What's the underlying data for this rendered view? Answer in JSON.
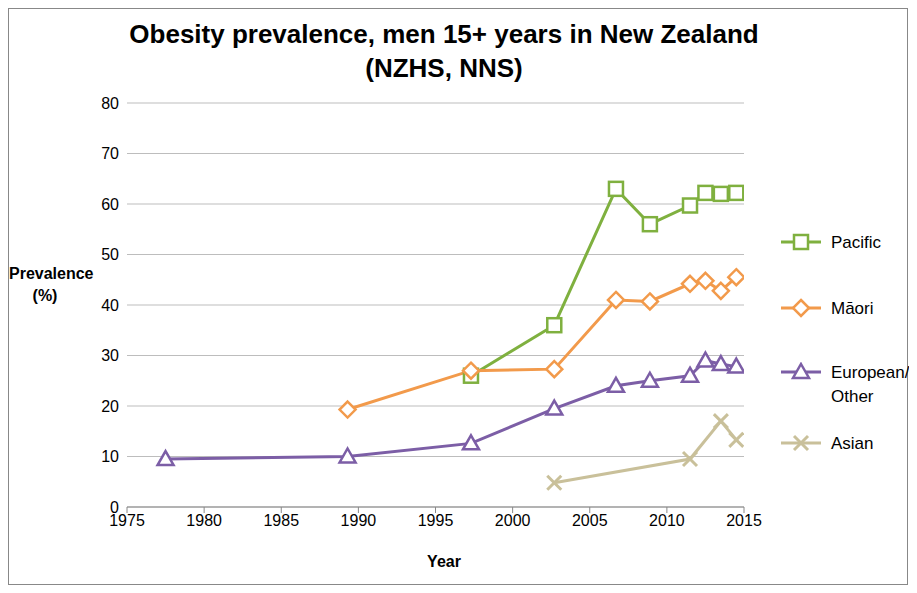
{
  "chart_data": {
    "type": "line",
    "title": "Obesity prevalence, men 15+ years in New Zealand\n(NZHS, NNS)",
    "x_label": "Year",
    "y_label": "Prevalence\n(%)",
    "xlim": [
      1975,
      2015
    ],
    "xticks": [
      1975,
      1980,
      1985,
      1990,
      1995,
      2000,
      2005,
      2010,
      2015
    ],
    "ylim": [
      0,
      80
    ],
    "yticks": [
      0,
      10,
      20,
      30,
      40,
      50,
      60,
      70,
      80
    ],
    "grid": true,
    "legend": "right",
    "series": [
      {
        "name": "Pacific",
        "color": "#7fb03f",
        "marker": "square",
        "x": [
          1997.3,
          2002.7,
          2006.7,
          2008.9,
          2011.5,
          2012.5,
          2013.5,
          2014.5
        ],
        "values": [
          26,
          36,
          63,
          56,
          59.7,
          62.2,
          62,
          62.2
        ]
      },
      {
        "name": "Māori",
        "color": "#f29a4b",
        "marker": "diamond",
        "x": [
          1989.3,
          1997.3,
          2002.7,
          2006.7,
          2008.9,
          2011.5,
          2012.5,
          2013.5,
          2014.5
        ],
        "values": [
          19.3,
          27,
          27.3,
          41,
          40.7,
          44.2,
          44.8,
          42.8,
          45.5
        ]
      },
      {
        "name": "European/\nOther",
        "color": "#7c5ea6",
        "marker": "triangle",
        "x": [
          1977.5,
          1989.3,
          1997.3,
          2002.7,
          2006.7,
          2008.9,
          2011.5,
          2012.5,
          2013.5,
          2014.5
        ],
        "values": [
          9.5,
          10,
          12.6,
          19.5,
          24,
          25,
          26,
          29,
          28.3,
          27.8
        ]
      },
      {
        "name": "Asian",
        "color": "#c9c09a",
        "marker": "x",
        "x": [
          2002.7,
          2011.5,
          2013.5,
          2014.5
        ],
        "values": [
          4.8,
          9.5,
          17,
          13.3
        ]
      }
    ]
  }
}
